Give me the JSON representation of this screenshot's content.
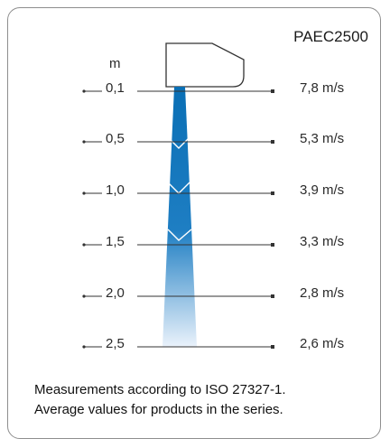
{
  "model": "PAEC2500",
  "unit_label": "m",
  "rows": [
    {
      "distance": "0,1",
      "speed": "7,8 m/s"
    },
    {
      "distance": "0,5",
      "speed": "5,3 m/s"
    },
    {
      "distance": "1,0",
      "speed": "3,9 m/s"
    },
    {
      "distance": "1,5",
      "speed": "3,3 m/s"
    },
    {
      "distance": "2,0",
      "speed": "2,8 m/s"
    },
    {
      "distance": "2,5",
      "speed": "2,6 m/s"
    }
  ],
  "notes": [
    "Measurements according to ISO 27327-1.",
    "Average values for products in the series."
  ],
  "colors": {
    "jet_top": "#0a6fb5",
    "jet_bottom": "#e8f1fa",
    "border": "#8e8e8e",
    "line": "#333333"
  }
}
